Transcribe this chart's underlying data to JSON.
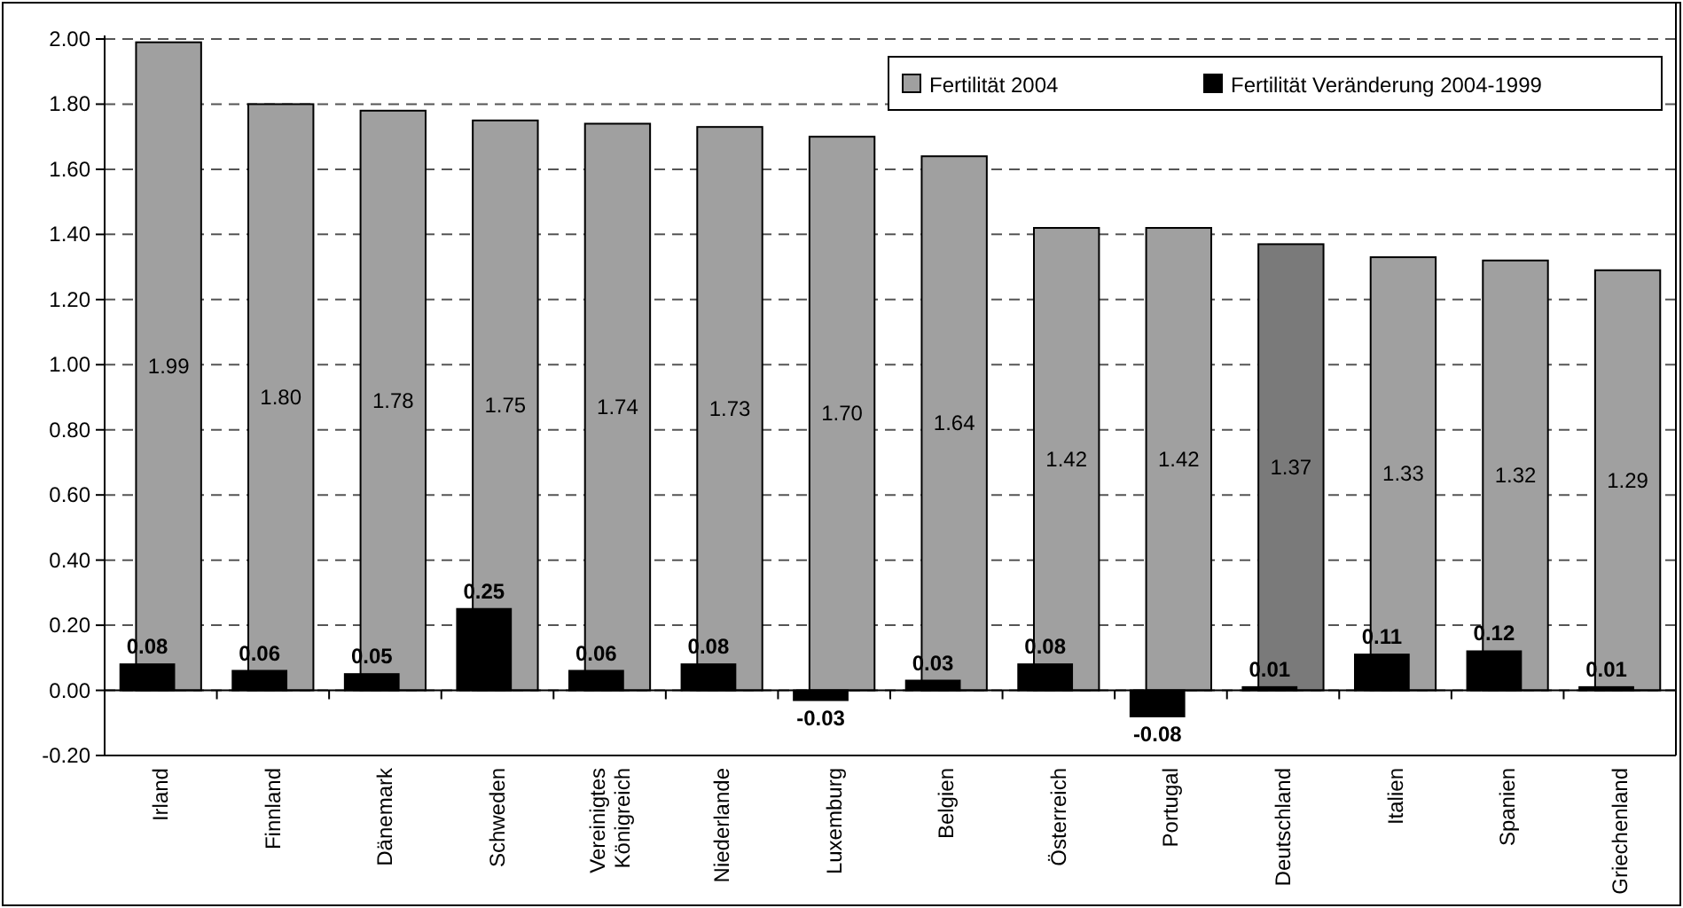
{
  "chart_data": {
    "type": "bar",
    "categories": [
      "Irland",
      "Finnland",
      "Dänemark",
      "Schweden",
      "Vereinigtes Königreich",
      "Niederlande",
      "Luxemburg",
      "Belgien",
      "Österreich",
      "Portugal",
      "Deutschland",
      "Italien",
      "Spanien",
      "Griechenland"
    ],
    "series": [
      {
        "name": "Fertilität 2004",
        "color": "#a0a0a0",
        "colors": [
          "#a0a0a0",
          "#a0a0a0",
          "#a0a0a0",
          "#a0a0a0",
          "#a0a0a0",
          "#a0a0a0",
          "#a0a0a0",
          "#a0a0a0",
          "#a0a0a0",
          "#a0a0a0",
          "#7a7a7a",
          "#a0a0a0",
          "#a0a0a0",
          "#a0a0a0"
        ],
        "values": [
          1.99,
          1.8,
          1.78,
          1.75,
          1.74,
          1.73,
          1.7,
          1.64,
          1.42,
          1.42,
          1.37,
          1.33,
          1.32,
          1.29
        ],
        "value_labels": [
          "1.99",
          "1.80",
          "1.78",
          "1.75",
          "1.74",
          "1.73",
          "1.70",
          "1.64",
          "1.42",
          "1.42",
          "1.37",
          "1.33",
          "1.32",
          "1.29"
        ]
      },
      {
        "name": "Fertilität Veränderung 2004-1999",
        "color": "#000000",
        "values": [
          0.08,
          0.06,
          0.05,
          0.25,
          0.06,
          0.08,
          -0.03,
          0.03,
          0.08,
          -0.08,
          0.01,
          0.11,
          0.12,
          0.01
        ],
        "value_labels": [
          "0.08",
          "0.06",
          "0.05",
          "0.25",
          "0.06",
          "0.08",
          "-0.03",
          "0.03",
          "0.08",
          "-0.08",
          "0.01",
          "0.11",
          "0.12",
          "0.01"
        ]
      }
    ],
    "ylim": [
      -0.2,
      2.0
    ],
    "yticks": [
      {
        "value": -0.2,
        "label": "-0.20"
      },
      {
        "value": 0,
        "label": "0.00"
      },
      {
        "value": 0.2,
        "label": "0.20"
      },
      {
        "value": 0.4,
        "label": "0.40"
      },
      {
        "value": 0.6,
        "label": "0.60"
      },
      {
        "value": 0.8,
        "label": "0.80"
      },
      {
        "value": 1.0,
        "label": "1.00"
      },
      {
        "value": 1.2,
        "label": "1.20"
      },
      {
        "value": 1.4,
        "label": "1.40"
      },
      {
        "value": 1.6,
        "label": "1.60"
      },
      {
        "value": 1.8,
        "label": "1.80"
      },
      {
        "value": 2.0,
        "label": "2.00"
      }
    ],
    "grid": "y",
    "legend": "top right"
  }
}
